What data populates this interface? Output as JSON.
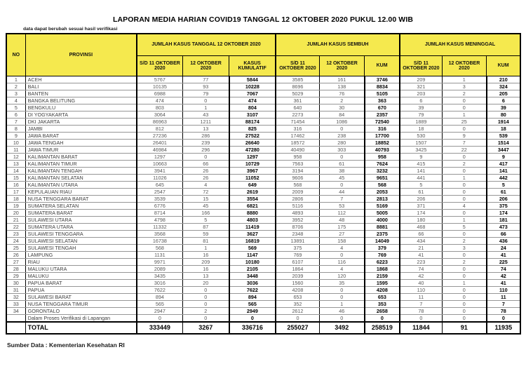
{
  "page": {
    "title": "LAPORAN MEDIA HARIAN COVID19 TANGGAL 12 OKTOBER 2020 PUKUL 12.00 WIB",
    "note": "data dapat berubah sesuai hasil verifikasi",
    "source": "Sumber Data : Kementerian Kesehatan RI"
  },
  "colors": {
    "header_bg": "#F5E94E",
    "border": "#000000",
    "row_line": "#969696",
    "regular_text": "#595959",
    "bold_text": "#000000"
  },
  "table": {
    "header": {
      "no": "NO",
      "provinsi": "PROVINSI",
      "group_kasus": "JUMLAH KASUS TANGGAL 12 OKTOBER 2020",
      "group_sembuh": "JUMLAH KASUS SEMBUH",
      "group_meninggal": "JUMLAH KASUS MENINGGAL",
      "sub": [
        "S/D 11 OKTOBER 2020",
        "12 OKTOBER 2020",
        "KASUS KUMULATIF",
        "S/D 11 OKTOBER 2020",
        "12 OKTOBER 2020",
        "KUM",
        "S/D 11 OKTOBER 2020",
        "12 OKTOBER 2020",
        "KUM"
      ]
    },
    "rows": [
      [
        1,
        "ACEH",
        5767,
        77,
        5844,
        3585,
        161,
        3746,
        209,
        1,
        210
      ],
      [
        2,
        "BALI",
        10135,
        93,
        10228,
        8696,
        138,
        8834,
        321,
        3,
        324
      ],
      [
        3,
        "BANTEN",
        6988,
        79,
        7067,
        5029,
        76,
        5105,
        203,
        2,
        205
      ],
      [
        4,
        "BANGKA BELITUNG",
        474,
        0,
        474,
        361,
        2,
        363,
        6,
        0,
        6
      ],
      [
        5,
        "BENGKULU",
        803,
        1,
        804,
        640,
        30,
        670,
        39,
        0,
        39
      ],
      [
        6,
        "DI YOGYAKARTA",
        3064,
        43,
        3107,
        2273,
        84,
        2357,
        79,
        1,
        80
      ],
      [
        7,
        "DKI JAKARTA",
        86963,
        1211,
        88174,
        71454,
        1086,
        72540,
        1889,
        25,
        1914
      ],
      [
        8,
        "JAMBI",
        812,
        13,
        825,
        316,
        0,
        316,
        18,
        0,
        18
      ],
      [
        9,
        "JAWA BARAT",
        27236,
        286,
        27522,
        17462,
        238,
        17700,
        530,
        9,
        539
      ],
      [
        10,
        "JAWA TENGAH",
        26401,
        239,
        26640,
        18572,
        280,
        18852,
        1507,
        7,
        1514
      ],
      [
        11,
        "JAWA TIMUR",
        46984,
        296,
        47280,
        40490,
        303,
        40793,
        3425,
        22,
        3447
      ],
      [
        12,
        "KALIMANTAN BARAT",
        1297,
        0,
        1297,
        958,
        0,
        958,
        9,
        0,
        9
      ],
      [
        13,
        "KALIMANTAN TIMUR",
        10663,
        66,
        10729,
        7563,
        61,
        7624,
        415,
        2,
        417
      ],
      [
        14,
        "KALIMANTAN TENGAH",
        3941,
        26,
        3967,
        3194,
        38,
        3232,
        141,
        0,
        141
      ],
      [
        15,
        "KALIMANTAN SELATAN",
        11026,
        26,
        11052,
        9606,
        45,
        9651,
        441,
        1,
        442
      ],
      [
        16,
        "KALIMANTAN UTARA",
        645,
        4,
        649,
        568,
        0,
        568,
        5,
        0,
        5
      ],
      [
        17,
        "KEPULAUAN RIAU",
        2547,
        72,
        2619,
        2009,
        44,
        2053,
        61,
        0,
        61
      ],
      [
        18,
        "NUSA TENGGARA BARAT",
        3539,
        15,
        3554,
        2806,
        7,
        2813,
        206,
        0,
        206
      ],
      [
        19,
        "SUMATERA SELATAN",
        6776,
        45,
        6821,
        5116,
        53,
        5169,
        371,
        4,
        375
      ],
      [
        20,
        "SUMATERA BARAT",
        8714,
        166,
        8880,
        4893,
        112,
        5005,
        174,
        0,
        174
      ],
      [
        21,
        "SULAWESI UTARA",
        4798,
        5,
        4803,
        3952,
        48,
        4000,
        180,
        1,
        181
      ],
      [
        22,
        "SUMATERA UTARA",
        11332,
        87,
        11419,
        8706,
        175,
        8881,
        468,
        5,
        473
      ],
      [
        23,
        "SULAWESI TENGGARA",
        3568,
        59,
        3627,
        2348,
        27,
        2375,
        66,
        0,
        66
      ],
      [
        24,
        "SULAWESI SELATAN",
        16738,
        81,
        16819,
        13891,
        158,
        14049,
        434,
        2,
        436
      ],
      [
        25,
        "SULAWESI TENGAH",
        568,
        1,
        569,
        375,
        4,
        379,
        21,
        3,
        24
      ],
      [
        26,
        "LAMPUNG",
        1131,
        16,
        1147,
        769,
        0,
        769,
        41,
        0,
        41
      ],
      [
        27,
        "RIAU",
        9971,
        209,
        10180,
        6107,
        116,
        6223,
        223,
        2,
        225
      ],
      [
        28,
        "MALUKU UTARA",
        2089,
        16,
        2105,
        1864,
        4,
        1868,
        74,
        0,
        74
      ],
      [
        29,
        "MALUKU",
        3435,
        13,
        3448,
        2039,
        120,
        2159,
        42,
        0,
        42
      ],
      [
        30,
        "PAPUA BARAT",
        3016,
        20,
        3036,
        1560,
        35,
        1595,
        40,
        1,
        41
      ],
      [
        31,
        "PAPUA",
        7622,
        0,
        7622,
        4208,
        0,
        4208,
        110,
        0,
        110
      ],
      [
        32,
        "SULAWESI BARAT",
        894,
        0,
        894,
        653,
        0,
        653,
        11,
        0,
        11
      ],
      [
        33,
        "NUSA TENGGARA TIMUR",
        565,
        0,
        565,
        352,
        1,
        353,
        7,
        0,
        7
      ],
      [
        34,
        "GORONTALO",
        2947,
        2,
        2949,
        2612,
        46,
        2658,
        78,
        0,
        78
      ],
      [
        "",
        "Dalam Proses Verifikasi di Lapangan",
        0,
        0,
        0,
        0,
        0,
        0,
        0,
        0,
        0
      ]
    ],
    "total": [
      "",
      "TOTAL",
      333449,
      3267,
      336716,
      255027,
      3492,
      258519,
      11844,
      91,
      11935
    ]
  }
}
